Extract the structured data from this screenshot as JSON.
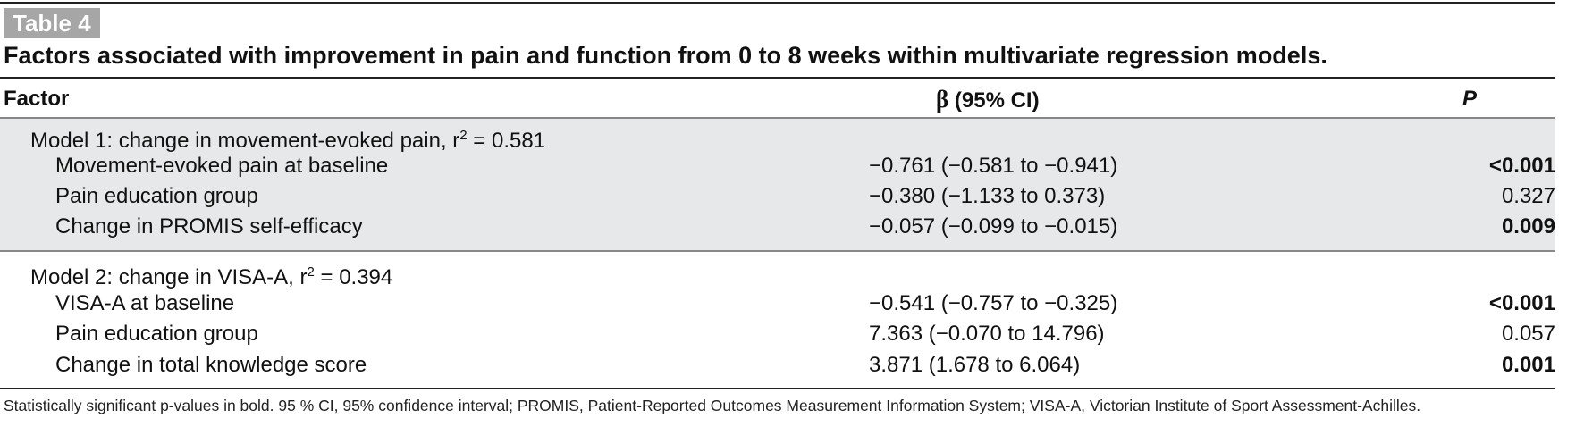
{
  "table": {
    "label": "Table 4",
    "caption": "Factors associated with improvement in pain and function from 0 to 8 weeks within multivariate regression models.",
    "columns": {
      "factor": "Factor",
      "beta_symbol": "β",
      "beta": " (95% CI)",
      "p": "P"
    },
    "models": [
      {
        "title": "Model 1: change in movement-evoked pain, r",
        "r2_exp": "2",
        "r2_value": " = 0.581",
        "rows": [
          {
            "factor": "Movement-evoked pain at baseline",
            "beta": "−0.761 (−0.581 to −0.941)",
            "p": "<0.001",
            "bold": true
          },
          {
            "factor": "Pain education group",
            "beta": "−0.380 (−1.133 to 0.373)",
            "p": "0.327",
            "bold": false
          },
          {
            "factor": "Change in PROMIS self-efficacy",
            "beta": "−0.057 (−0.099 to −0.015)",
            "p": "0.009",
            "bold": true
          }
        ]
      },
      {
        "title": "Model 2: change in VISA-A, r",
        "r2_exp": "2",
        "r2_value": " = 0.394",
        "rows": [
          {
            "factor": "VISA-A at baseline",
            "beta": "−0.541 (−0.757 to −0.325)",
            "p": "<0.001",
            "bold": true
          },
          {
            "factor": "Pain education group",
            "beta": "7.363 (−0.070 to 14.796)",
            "p": "0.057",
            "bold": false
          },
          {
            "factor": "Change in total knowledge score",
            "beta": "3.871 (1.678 to 6.064)",
            "p": "0.001",
            "bold": true
          }
        ]
      }
    ],
    "footnote": "Statistically significant p-values in bold. 95 % CI, 95% confidence interval; PROMIS, Patient-Reported Outcomes Measurement Information System; VISA-A, Victorian Institute of Sport Assessment-Achilles.",
    "colors": {
      "shade": "#e6e8ea",
      "label_bg": "#a6a6a6"
    }
  }
}
